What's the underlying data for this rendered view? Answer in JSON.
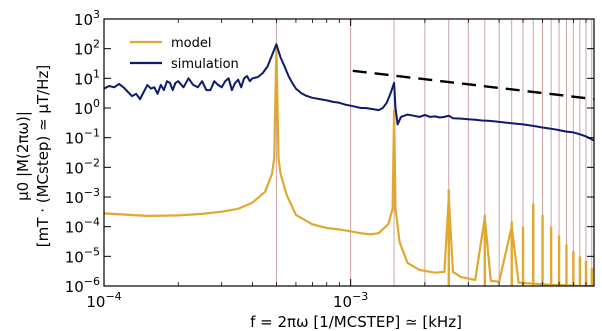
{
  "chart_data": {
    "type": "line",
    "title": "",
    "xlabel": "f = 2πω [1/MCSTEP] ≃ [kHz]",
    "ylabel_line1": "μ0 |M(2πω)|",
    "ylabel_line2": "[mT · (MCstep) ≃ μT/Hz]",
    "xscale": "log",
    "yscale": "log",
    "xlim": [
      0.0001,
      0.0097
    ],
    "ylim": [
      1e-06,
      1000
    ],
    "x_ticks": [
      {
        "base": "10",
        "exp": "−4",
        "value": 0.0001
      },
      {
        "base": "10",
        "exp": "−3",
        "value": 0.001
      }
    ],
    "y_ticks": [
      {
        "base": "10",
        "exp": "3",
        "value": 1000
      },
      {
        "base": "10",
        "exp": "2",
        "value": 100
      },
      {
        "base": "10",
        "exp": "1",
        "value": 10
      },
      {
        "base": "10",
        "exp": "0",
        "value": 1
      },
      {
        "base": "10",
        "exp": "−1",
        "value": 0.1
      },
      {
        "base": "10",
        "exp": "−2",
        "value": 0.01
      },
      {
        "base": "10",
        "exp": "−3",
        "value": 0.001
      },
      {
        "base": "10",
        "exp": "−4",
        "value": 0.0001
      },
      {
        "base": "10",
        "exp": "−5",
        "value": 1e-05
      },
      {
        "base": "10",
        "exp": "−6",
        "value": 1e-06
      }
    ],
    "legend_position": "top-left",
    "harmonic_lines_color": "#c89a9a",
    "harmonic_lines_x": [
      0.0005,
      0.001,
      0.0015,
      0.002,
      0.0025,
      0.003,
      0.0035,
      0.004,
      0.0045,
      0.005,
      0.0055,
      0.006,
      0.0065,
      0.007,
      0.0075,
      0.008,
      0.0085,
      0.009,
      0.0095
    ],
    "series": [
      {
        "name": "model",
        "color": "#e0a82e",
        "baseline": [
          [
            0.0001,
            0.00028
          ],
          [
            0.00015,
            0.00023
          ],
          [
            0.0002,
            0.00024
          ],
          [
            0.00025,
            0.00027
          ],
          [
            0.0003,
            0.00032
          ],
          [
            0.00035,
            0.0004
          ],
          [
            0.0004,
            0.00065
          ],
          [
            0.00045,
            0.0015
          ],
          [
            0.00048,
            0.006
          ],
          [
            0.00049,
            0.02
          ],
          [
            0.0005,
            120
          ],
          [
            0.00051,
            0.02
          ],
          [
            0.00052,
            0.006
          ],
          [
            0.00055,
            0.0012
          ],
          [
            0.0006,
            0.00025
          ],
          [
            0.0007,
            0.00012
          ],
          [
            0.0008,
            9e-05
          ],
          [
            0.0009,
            8e-05
          ],
          [
            0.001,
            7e-05
          ],
          [
            0.0011,
            6e-05
          ],
          [
            0.0012,
            5.5e-05
          ],
          [
            0.0013,
            6e-05
          ],
          [
            0.00142,
            0.00012
          ],
          [
            0.00148,
            0.0004
          ],
          [
            0.0015,
            0.8
          ],
          [
            0.00152,
            0.0004
          ],
          [
            0.00158,
            3e-05
          ],
          [
            0.0017,
            6e-06
          ],
          [
            0.0019,
            3.5e-06
          ],
          [
            0.0022,
            2.8e-06
          ],
          [
            0.0024,
            3e-06
          ],
          [
            0.0025,
            0.001
          ],
          [
            0.0026,
            3e-06
          ],
          [
            0.0028,
            2e-06
          ],
          [
            0.0032,
            1.6e-06
          ],
          [
            0.0035,
            0.0002
          ],
          [
            0.0037,
            1.5e-06
          ],
          [
            0.004,
            1.4e-06
          ],
          [
            0.0045,
            0.0001
          ],
          [
            0.0048,
            1.3e-06
          ],
          [
            0.0055,
            1.2e-06
          ],
          [
            0.0065,
            1.1e-06
          ],
          [
            0.0075,
            1.05e-06
          ],
          [
            0.0085,
            1e-06
          ],
          [
            0.0097,
            1e-06
          ]
        ],
        "spikes": [
          [
            0.0025,
            0.0018
          ],
          [
            0.0035,
            0.00025
          ],
          [
            0.0045,
            0.00015
          ],
          [
            0.005,
            0.0001
          ],
          [
            0.0055,
            0.0006
          ],
          [
            0.006,
            0.00025
          ],
          [
            0.0065,
            0.0001
          ],
          [
            0.007,
            5e-05
          ],
          [
            0.0075,
            2.5e-05
          ],
          [
            0.008,
            1.5e-05
          ],
          [
            0.0085,
            1e-05
          ],
          [
            0.009,
            7e-06
          ],
          [
            0.0095,
            4e-06
          ]
        ]
      },
      {
        "name": "simulation",
        "color": "#0d1a6e",
        "points": [
          [
            0.0001,
            4.5
          ],
          [
            0.000105,
            5.5
          ],
          [
            0.00011,
            5
          ],
          [
            0.000115,
            6.5
          ],
          [
            0.00012,
            5
          ],
          [
            0.000125,
            3.5
          ],
          [
            0.00013,
            2.5
          ],
          [
            0.000135,
            3
          ],
          [
            0.00014,
            2
          ],
          [
            0.000145,
            3.5
          ],
          [
            0.00015,
            6
          ],
          [
            0.000155,
            4.5
          ],
          [
            0.00016,
            5
          ],
          [
            0.000165,
            3
          ],
          [
            0.00017,
            6
          ],
          [
            0.000175,
            4
          ],
          [
            0.00018,
            8
          ],
          [
            0.000185,
            7
          ],
          [
            0.00019,
            4
          ],
          [
            0.000195,
            7
          ],
          [
            0.0002,
            8
          ],
          [
            0.00021,
            5
          ],
          [
            0.00022,
            10
          ],
          [
            0.00023,
            6
          ],
          [
            0.00024,
            5
          ],
          [
            0.00025,
            8
          ],
          [
            0.00026,
            4
          ],
          [
            0.00027,
            4
          ],
          [
            0.00028,
            8
          ],
          [
            0.00029,
            6
          ],
          [
            0.0003,
            5
          ],
          [
            0.00031,
            8
          ],
          [
            0.00032,
            10
          ],
          [
            0.00033,
            4
          ],
          [
            0.00034,
            7
          ],
          [
            0.00035,
            9
          ],
          [
            0.00036,
            5
          ],
          [
            0.00037,
            10
          ],
          [
            0.00038,
            12
          ],
          [
            0.00039,
            8
          ],
          [
            0.0004,
            10
          ],
          [
            0.00042,
            11
          ],
          [
            0.00044,
            15
          ],
          [
            0.00046,
            25
          ],
          [
            0.00048,
            60
          ],
          [
            0.0005,
            140
          ],
          [
            0.00052,
            50
          ],
          [
            0.00054,
            25
          ],
          [
            0.00056,
            12
          ],
          [
            0.00058,
            7
          ],
          [
            0.0006,
            4.5
          ],
          [
            0.00063,
            3.2
          ],
          [
            0.00066,
            2.6
          ],
          [
            0.0007,
            2.2
          ],
          [
            0.00075,
            2
          ],
          [
            0.0008,
            1.8
          ],
          [
            0.00085,
            1.6
          ],
          [
            0.0009,
            1.5
          ],
          [
            0.00095,
            1.3
          ],
          [
            0.001,
            1.2
          ],
          [
            0.00105,
            1.1
          ],
          [
            0.0011,
            1.0
          ],
          [
            0.00115,
            1.0
          ],
          [
            0.0012,
            0.95
          ],
          [
            0.00125,
            0.9
          ],
          [
            0.0013,
            0.85
          ],
          [
            0.00135,
            1.0
          ],
          [
            0.0014,
            1.5
          ],
          [
            0.00145,
            3
          ],
          [
            0.0015,
            7
          ],
          [
            0.00152,
            1
          ],
          [
            0.00155,
            0.28
          ],
          [
            0.0016,
            0.5
          ],
          [
            0.00165,
            0.55
          ],
          [
            0.0017,
            0.6
          ],
          [
            0.0018,
            0.55
          ],
          [
            0.0019,
            0.5
          ],
          [
            0.002,
            0.58
          ],
          [
            0.0021,
            0.5
          ],
          [
            0.0022,
            0.52
          ],
          [
            0.0023,
            0.48
          ],
          [
            0.0024,
            0.5
          ],
          [
            0.0025,
            0.55
          ],
          [
            0.0026,
            0.45
          ],
          [
            0.0028,
            0.44
          ],
          [
            0.003,
            0.42
          ],
          [
            0.0032,
            0.4
          ],
          [
            0.0034,
            0.38
          ],
          [
            0.0036,
            0.37
          ],
          [
            0.0038,
            0.36
          ],
          [
            0.004,
            0.34
          ],
          [
            0.0043,
            0.32
          ],
          [
            0.0046,
            0.3
          ],
          [
            0.005,
            0.28
          ],
          [
            0.0055,
            0.25
          ],
          [
            0.006,
            0.22
          ],
          [
            0.0065,
            0.2
          ],
          [
            0.007,
            0.18
          ],
          [
            0.0075,
            0.16
          ],
          [
            0.008,
            0.15
          ],
          [
            0.0085,
            0.13
          ],
          [
            0.009,
            0.11
          ],
          [
            0.0097,
            0.08
          ]
        ]
      },
      {
        "name": "",
        "style": "dashed",
        "color": "#000000",
        "points": [
          [
            0.00102,
            18
          ],
          [
            0.0097,
            2
          ]
        ]
      }
    ]
  }
}
